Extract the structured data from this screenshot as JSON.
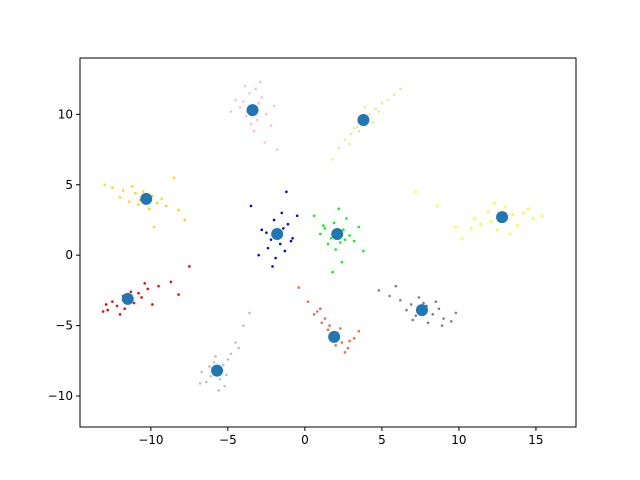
{
  "chart_data": {
    "type": "scatter",
    "xlim": [
      -14.6,
      17.6
    ],
    "ylim": [
      -12.2,
      14.0
    ],
    "xticks": [
      {
        "value": -10,
        "label": "−10"
      },
      {
        "value": -5,
        "label": "−5"
      },
      0,
      5,
      10,
      15
    ],
    "yticks": [
      {
        "value": -10,
        "label": "−10"
      },
      {
        "value": -5,
        "label": "−5"
      },
      0,
      5,
      10
    ],
    "series": [
      {
        "color": "#ffc0cb",
        "size": 1.3,
        "x": [
          -3.4,
          -3.0,
          -3.8,
          -2.8,
          -4.2,
          -3.1,
          -3.6,
          -2.5,
          -4.5,
          -3.9,
          -2.2,
          -3.3,
          -2.6,
          -4.0,
          -1.8,
          -2.9,
          -3.5,
          -2.0,
          -4.8,
          -3.2
        ],
        "values": [
          10.3,
          10.8,
          9.9,
          11.2,
          10.5,
          9.6,
          11.5,
          10.0,
          11.0,
          12.0,
          9.2,
          8.8,
          8.0,
          10.9,
          7.5,
          12.3,
          9.3,
          10.6,
          10.2,
          11.8
        ]
      },
      {
        "color": "#f0e68c",
        "size": 1.3,
        "x": [
          3.8,
          4.2,
          3.4,
          4.6,
          3.0,
          5.0,
          2.6,
          5.4,
          2.2,
          3.6,
          4.0,
          4.8,
          3.2,
          1.8,
          5.8,
          4.4,
          3.9,
          2.9,
          3.5,
          6.2
        ],
        "values": [
          9.6,
          10.0,
          9.1,
          10.4,
          8.6,
          10.8,
          8.2,
          11.0,
          7.6,
          9.8,
          9.2,
          10.2,
          9.0,
          6.8,
          11.4,
          9.4,
          10.5,
          7.9,
          8.8,
          11.8
        ]
      },
      {
        "color": "#ffd700",
        "size": 1.3,
        "x": [
          -10.3,
          -11.0,
          -9.6,
          -11.8,
          -9.0,
          -12.5,
          -10.8,
          -9.9,
          -8.2,
          -11.4,
          -10.5,
          -12.0,
          -9.3,
          -8.5,
          -10.1,
          -11.2,
          -7.8,
          -13.0,
          -9.8,
          -10.7
        ],
        "values": [
          4.0,
          4.4,
          3.7,
          4.6,
          3.5,
          4.8,
          3.6,
          4.2,
          3.2,
          3.8,
          4.5,
          4.1,
          4.0,
          5.5,
          3.3,
          4.9,
          2.5,
          5.0,
          2.0,
          3.9
        ]
      },
      {
        "color": "#0000ff",
        "size": 1.3,
        "x": [
          -1.8,
          -1.4,
          -2.2,
          -1.1,
          -2.5,
          -1.6,
          -2.0,
          -1.3,
          -2.8,
          -0.8,
          -1.9,
          -1.5,
          -2.4,
          -3.5,
          -0.5,
          -1.7,
          -2.1,
          -1.2,
          -3.0,
          -0.9
        ],
        "values": [
          1.5,
          1.9,
          1.1,
          2.2,
          1.6,
          0.8,
          2.5,
          0.3,
          1.8,
          1.2,
          -0.2,
          3.0,
          0.5,
          3.5,
          2.8,
          1.3,
          -0.8,
          4.5,
          0.0,
          1.0
        ]
      },
      {
        "color": "#00ff00",
        "size": 1.3,
        "x": [
          2.1,
          2.5,
          1.7,
          2.9,
          1.3,
          2.3,
          1.9,
          3.2,
          1.0,
          2.7,
          2.0,
          1.5,
          3.5,
          2.4,
          0.6,
          2.2,
          3.8,
          1.8,
          2.6,
          1.2
        ],
        "values": [
          1.5,
          1.8,
          1.2,
          1.4,
          1.9,
          0.9,
          2.3,
          1.0,
          1.5,
          2.6,
          0.4,
          0.8,
          2.0,
          -0.5,
          2.8,
          3.3,
          0.3,
          -1.2,
          1.1,
          2.1
        ]
      },
      {
        "color": "#ffff00",
        "size": 1.3,
        "x": [
          12.8,
          13.5,
          12.1,
          14.2,
          11.4,
          13.0,
          10.8,
          14.8,
          12.5,
          9.8,
          15.4,
          11.9,
          13.8,
          8.6,
          12.3,
          10.2,
          14.5,
          7.2,
          11.0,
          13.3
        ],
        "values": [
          2.7,
          2.9,
          2.4,
          3.0,
          2.2,
          3.4,
          1.9,
          2.6,
          1.8,
          2.0,
          2.8,
          3.1,
          2.1,
          3.5,
          3.7,
          1.2,
          3.3,
          4.5,
          2.6,
          1.5
        ]
      },
      {
        "color": "#ff0000",
        "size": 1.3,
        "x": [
          -11.5,
          -12.2,
          -10.8,
          -12.8,
          -10.2,
          -11.8,
          -11.1,
          -13.1,
          -9.5,
          -12.5,
          -10.6,
          -11.3,
          -8.7,
          -12.0,
          -9.9,
          -7.5,
          -11.7,
          -10.4,
          -12.9,
          -8.2
        ],
        "values": [
          -3.1,
          -3.6,
          -2.7,
          -3.9,
          -2.4,
          -2.9,
          -3.4,
          -4.0,
          -2.2,
          -3.3,
          -3.0,
          -2.6,
          -1.9,
          -4.2,
          -3.5,
          -0.8,
          -3.8,
          -2.0,
          -3.5,
          -2.8
        ]
      },
      {
        "color": "#808080",
        "size": 1.3,
        "x": [
          7.6,
          8.3,
          6.9,
          9.0,
          6.2,
          7.9,
          7.2,
          8.7,
          5.5,
          9.5,
          7.4,
          8.0,
          6.6,
          4.8,
          8.5,
          7.0,
          9.8,
          5.9,
          7.7,
          8.9
        ],
        "values": [
          -3.9,
          -4.2,
          -3.5,
          -4.5,
          -3.2,
          -3.6,
          -4.3,
          -3.8,
          -2.9,
          -4.7,
          -3.0,
          -4.8,
          -3.9,
          -2.5,
          -3.3,
          -4.6,
          -4.1,
          -2.2,
          -3.4,
          -5.0
        ]
      },
      {
        "color": "#ff6347",
        "size": 1.3,
        "x": [
          1.9,
          2.4,
          1.5,
          2.8,
          1.1,
          2.1,
          1.7,
          0.6,
          3.2,
          2.6,
          1.3,
          0.2,
          2.0,
          1.6,
          3.5,
          -0.4,
          2.3,
          1.0,
          2.9,
          0.8
        ],
        "values": [
          -5.8,
          -6.2,
          -5.3,
          -6.6,
          -4.8,
          -5.5,
          -6.0,
          -4.2,
          -5.9,
          -6.9,
          -4.5,
          -3.3,
          -6.4,
          -5.0,
          -5.4,
          -2.3,
          -5.2,
          -3.8,
          -6.1,
          -4.0
        ]
      },
      {
        "color": "#c0c0c0",
        "size": 1.3,
        "x": [
          -5.7,
          -5.3,
          -6.1,
          -5.0,
          -6.4,
          -5.5,
          -5.9,
          -4.8,
          -6.7,
          -5.2,
          -5.6,
          -4.5,
          -6.2,
          -4.0,
          -5.8,
          -3.6,
          -6.8,
          -5.1,
          -4.3,
          -6.0
        ],
        "values": [
          -8.2,
          -7.8,
          -8.6,
          -7.4,
          -9.0,
          -8.8,
          -7.6,
          -7.0,
          -8.3,
          -9.3,
          -9.6,
          -6.2,
          -7.9,
          -5.0,
          -7.2,
          -4.1,
          -9.1,
          -8.5,
          -6.6,
          -8.0
        ]
      },
      {
        "color": "#1f77b4",
        "size": 6,
        "x": [
          -3.4,
          3.8,
          -10.3,
          -1.8,
          2.1,
          12.8,
          -11.5,
          7.6,
          1.9,
          -5.7
        ],
        "values": [
          10.3,
          9.6,
          4.0,
          1.5,
          1.5,
          2.7,
          -3.1,
          -3.9,
          -5.8,
          -8.2
        ]
      }
    ]
  }
}
